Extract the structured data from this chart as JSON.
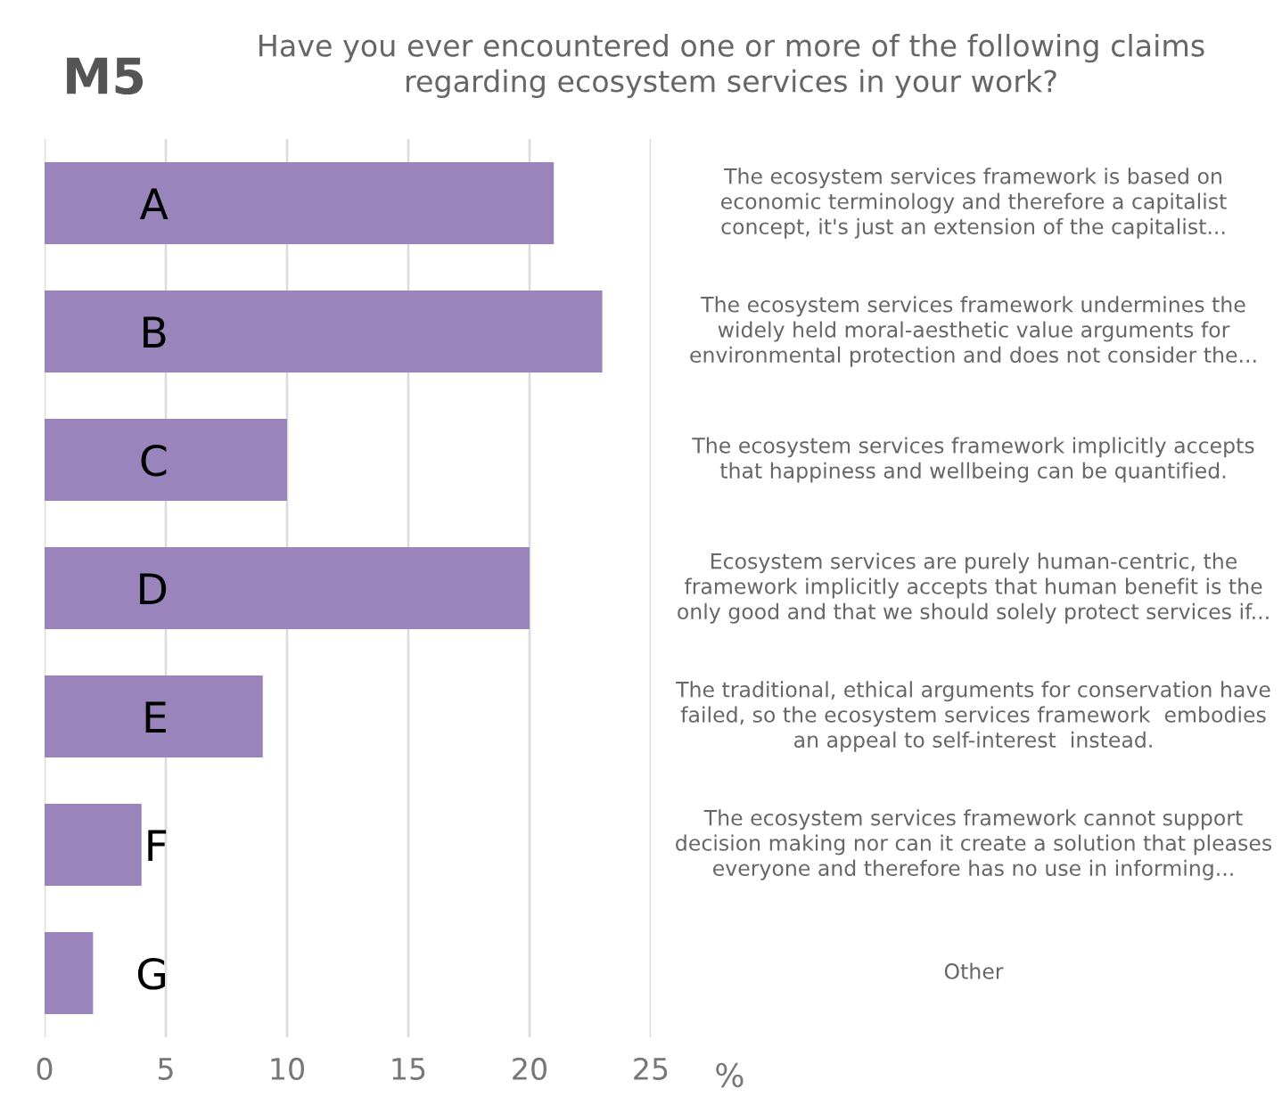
{
  "chart_data": {
    "type": "bar",
    "orientation": "horizontal",
    "title": "M5",
    "subtitle": "Have you ever encountered one or more of the following claims\nregarding ecosystem services in your work?",
    "xlabel": "%",
    "categories": [
      "A",
      "B",
      "C",
      "D",
      "E",
      "F",
      "G"
    ],
    "values": [
      21,
      23,
      10,
      20,
      9,
      4,
      2
    ],
    "color": "#9985bb",
    "xlim": [
      0,
      25
    ],
    "xticks": [
      0,
      5,
      10,
      15,
      20,
      25
    ],
    "grid": "x",
    "annotations": [
      "The ecosystem services framework is based on\neconomic terminology and therefore a capitalist\nconcept, it's just an extension of the capitalist...",
      "The ecosystem services framework undermines the\nwidely held moral-aesthetic value arguments for\nenvironmental protection and does not consider the...",
      "The ecosystem services framework implicitly accepts\nthat happiness and wellbeing can be quantified.",
      "Ecosystem services are purely human-centric, the\nframework implicitly accepts that human benefit is the\nonly good and that we should solely protect services if...",
      "The traditional, ethical arguments for conservation have\nfailed, so the ecosystem services framework  embodies\nan appeal to self-interest  instead.",
      "The ecosystem services framework cannot support\ndecision making nor can it create a solution that pleases\neveryone and therefore has no use in informing...",
      "Other"
    ]
  }
}
